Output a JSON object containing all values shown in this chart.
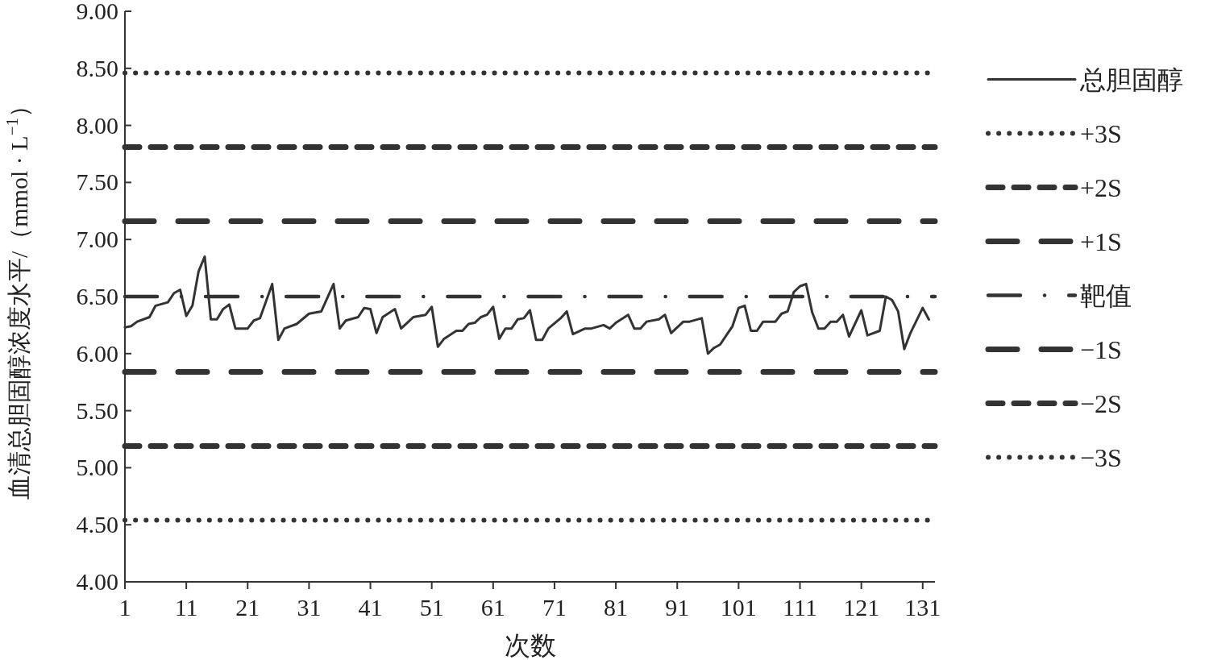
{
  "chart_data": {
    "type": "line",
    "xlabel": "次数",
    "ylabel": "血清总胆固醇浓度水平/（mmol · L$^{−1}$）",
    "xlim": [
      1,
      133
    ],
    "ylim": [
      4,
      9
    ],
    "xticks": [
      1,
      11,
      21,
      31,
      41,
      51,
      61,
      71,
      81,
      91,
      101,
      111,
      121,
      131
    ],
    "yticks": [
      {
        "value": 4,
        "label": "4.00"
      },
      {
        "value": 4.5,
        "label": "4.50"
      },
      {
        "value": 5,
        "label": "5.00"
      },
      {
        "value": 5.5,
        "label": "5.50"
      },
      {
        "value": 6,
        "label": "6.00"
      },
      {
        "value": 6.5,
        "label": "6.50"
      },
      {
        "value": 7,
        "label": "7.00"
      },
      {
        "value": 7.5,
        "label": "7.50"
      },
      {
        "value": 8,
        "label": "8.00"
      },
      {
        "value": 8.5,
        "label": "8.50"
      },
      {
        "value": 9,
        "label": "9.00"
      }
    ],
    "grid": false,
    "legend": "right",
    "marker": "none",
    "series": [
      {
        "name": "总胆固醇",
        "color": "#333333",
        "line_style": "solid",
        "x": [
          1,
          2,
          3,
          5,
          6,
          8,
          9,
          10,
          11,
          12,
          13,
          14,
          15,
          16,
          17,
          18,
          19,
          21,
          22,
          23,
          25,
          26,
          27,
          29,
          31,
          33,
          35,
          36,
          37,
          39,
          40,
          41,
          42,
          43,
          45,
          46,
          47,
          48,
          50,
          51,
          52,
          53,
          55,
          56,
          57,
          58,
          59,
          60,
          61,
          62,
          63,
          64,
          65,
          66,
          67,
          68,
          69,
          70,
          72,
          73,
          74,
          76,
          77,
          79,
          80,
          81,
          83,
          84,
          85,
          86,
          88,
          89,
          90,
          92,
          93,
          95,
          96,
          97,
          98,
          99,
          100,
          101,
          102,
          103,
          104,
          105,
          107,
          108,
          109,
          110,
          111,
          112,
          113,
          114,
          115,
          116,
          117,
          118,
          119,
          121,
          122,
          124,
          125,
          126,
          127,
          128,
          129,
          131,
          132
        ],
        "values": [
          6.23,
          6.24,
          6.28,
          6.32,
          6.42,
          6.45,
          6.53,
          6.56,
          6.33,
          6.42,
          6.72,
          6.85,
          6.3,
          6.3,
          6.39,
          6.43,
          6.22,
          6.22,
          6.29,
          6.31,
          6.61,
          6.12,
          6.22,
          6.26,
          6.35,
          6.37,
          6.61,
          6.22,
          6.29,
          6.32,
          6.4,
          6.39,
          6.18,
          6.32,
          6.39,
          6.22,
          6.27,
          6.32,
          6.34,
          6.41,
          6.06,
          6.13,
          6.2,
          6.2,
          6.26,
          6.27,
          6.32,
          6.34,
          6.41,
          6.13,
          6.22,
          6.22,
          6.3,
          6.31,
          6.38,
          6.12,
          6.12,
          6.22,
          6.31,
          6.37,
          6.17,
          6.22,
          6.22,
          6.25,
          6.22,
          6.27,
          6.34,
          6.22,
          6.22,
          6.28,
          6.3,
          6.34,
          6.18,
          6.28,
          6.28,
          6.31,
          6.0,
          6.05,
          6.08,
          6.16,
          6.24,
          6.4,
          6.42,
          6.2,
          6.2,
          6.28,
          6.28,
          6.35,
          6.37,
          6.54,
          6.59,
          6.61,
          6.36,
          6.22,
          6.22,
          6.28,
          6.28,
          6.34,
          6.15,
          6.38,
          6.16,
          6.2,
          6.5,
          6.47,
          6.37,
          6.04,
          6.18,
          6.4,
          6.3
        ]
      },
      {
        "name": "+3S",
        "color": "#333333",
        "line_style": "dotted",
        "x": [
          1,
          133
        ],
        "values": [
          8.46,
          8.46
        ]
      },
      {
        "name": "+2S",
        "color": "#333333",
        "line_style": "dashed",
        "x": [
          1,
          133
        ],
        "values": [
          7.81,
          7.81
        ]
      },
      {
        "name": "+1S",
        "color": "#333333",
        "line_style": "long dashed",
        "x": [
          1,
          133
        ],
        "values": [
          7.16,
          7.16
        ]
      },
      {
        "name": "靶值",
        "color": "#333333",
        "line_style": "dash-dot",
        "x": [
          1,
          133
        ],
        "values": [
          6.5,
          6.5
        ]
      },
      {
        "name": "−1S",
        "color": "#333333",
        "line_style": "long dashed",
        "x": [
          1,
          133
        ],
        "values": [
          5.84,
          5.84
        ]
      },
      {
        "name": "−2S",
        "color": "#333333",
        "line_style": "dashed",
        "x": [
          1,
          133
        ],
        "values": [
          5.19,
          5.19
        ]
      },
      {
        "name": "−3S",
        "color": "#333333",
        "line_style": "dotted",
        "x": [
          1,
          133
        ],
        "values": [
          4.54,
          4.54
        ]
      }
    ]
  }
}
